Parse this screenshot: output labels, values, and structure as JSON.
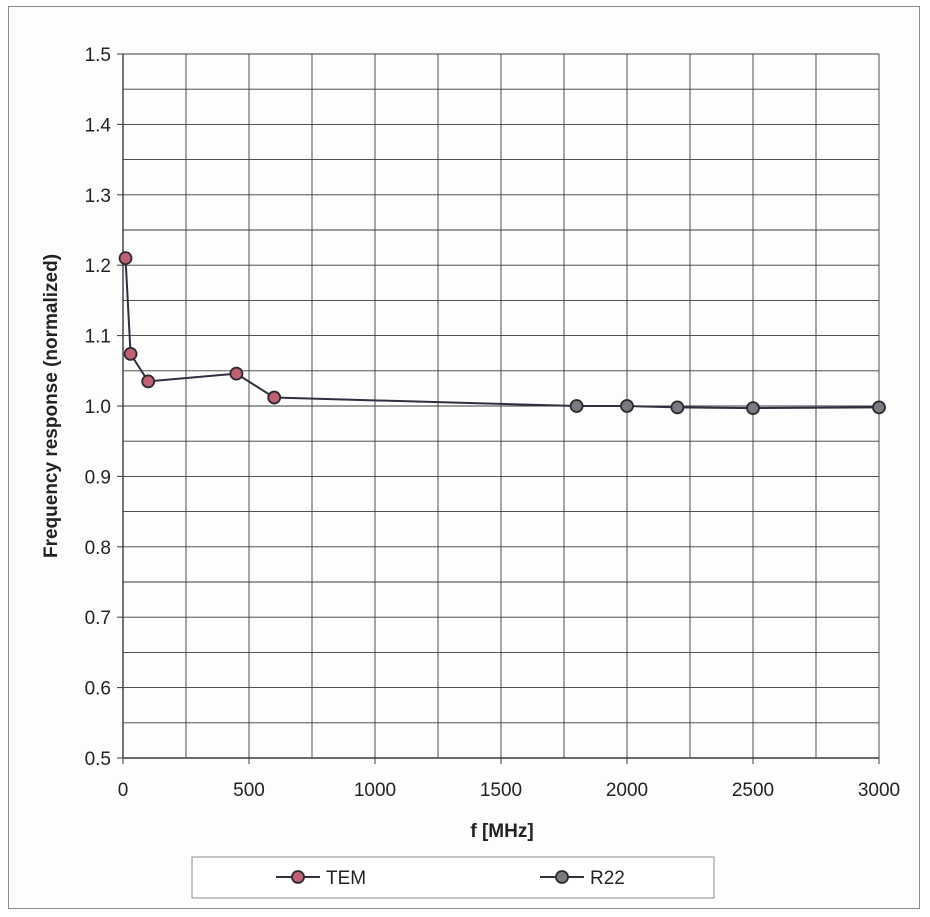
{
  "chart_data": {
    "type": "line",
    "xlabel": "f [MHz]",
    "ylabel": "Frequency response (normalized)",
    "xlim": [
      0,
      3000
    ],
    "ylim": [
      0.5,
      1.5
    ],
    "x_ticks": [
      0,
      500,
      1000,
      1500,
      2000,
      2500,
      3000
    ],
    "y_ticks": [
      "0.5",
      "0.6",
      "0.7",
      "0.8",
      "0.9",
      "1.0",
      "1.1",
      "1.2",
      "1.3",
      "1.4",
      "1.5"
    ],
    "grid": true,
    "legend_position": "bottom",
    "connected": true,
    "series": [
      {
        "name": "TEM",
        "color": "#c06070",
        "x": [
          10,
          30,
          100,
          450,
          600
        ],
        "y": [
          1.21,
          1.074,
          1.035,
          1.046,
          1.012
        ]
      },
      {
        "name": "R22",
        "color": "#7a7a82",
        "x": [
          1800,
          2000,
          2200,
          2500,
          3000
        ],
        "y": [
          1.0,
          1.0,
          0.998,
          0.997,
          0.998
        ]
      }
    ]
  }
}
